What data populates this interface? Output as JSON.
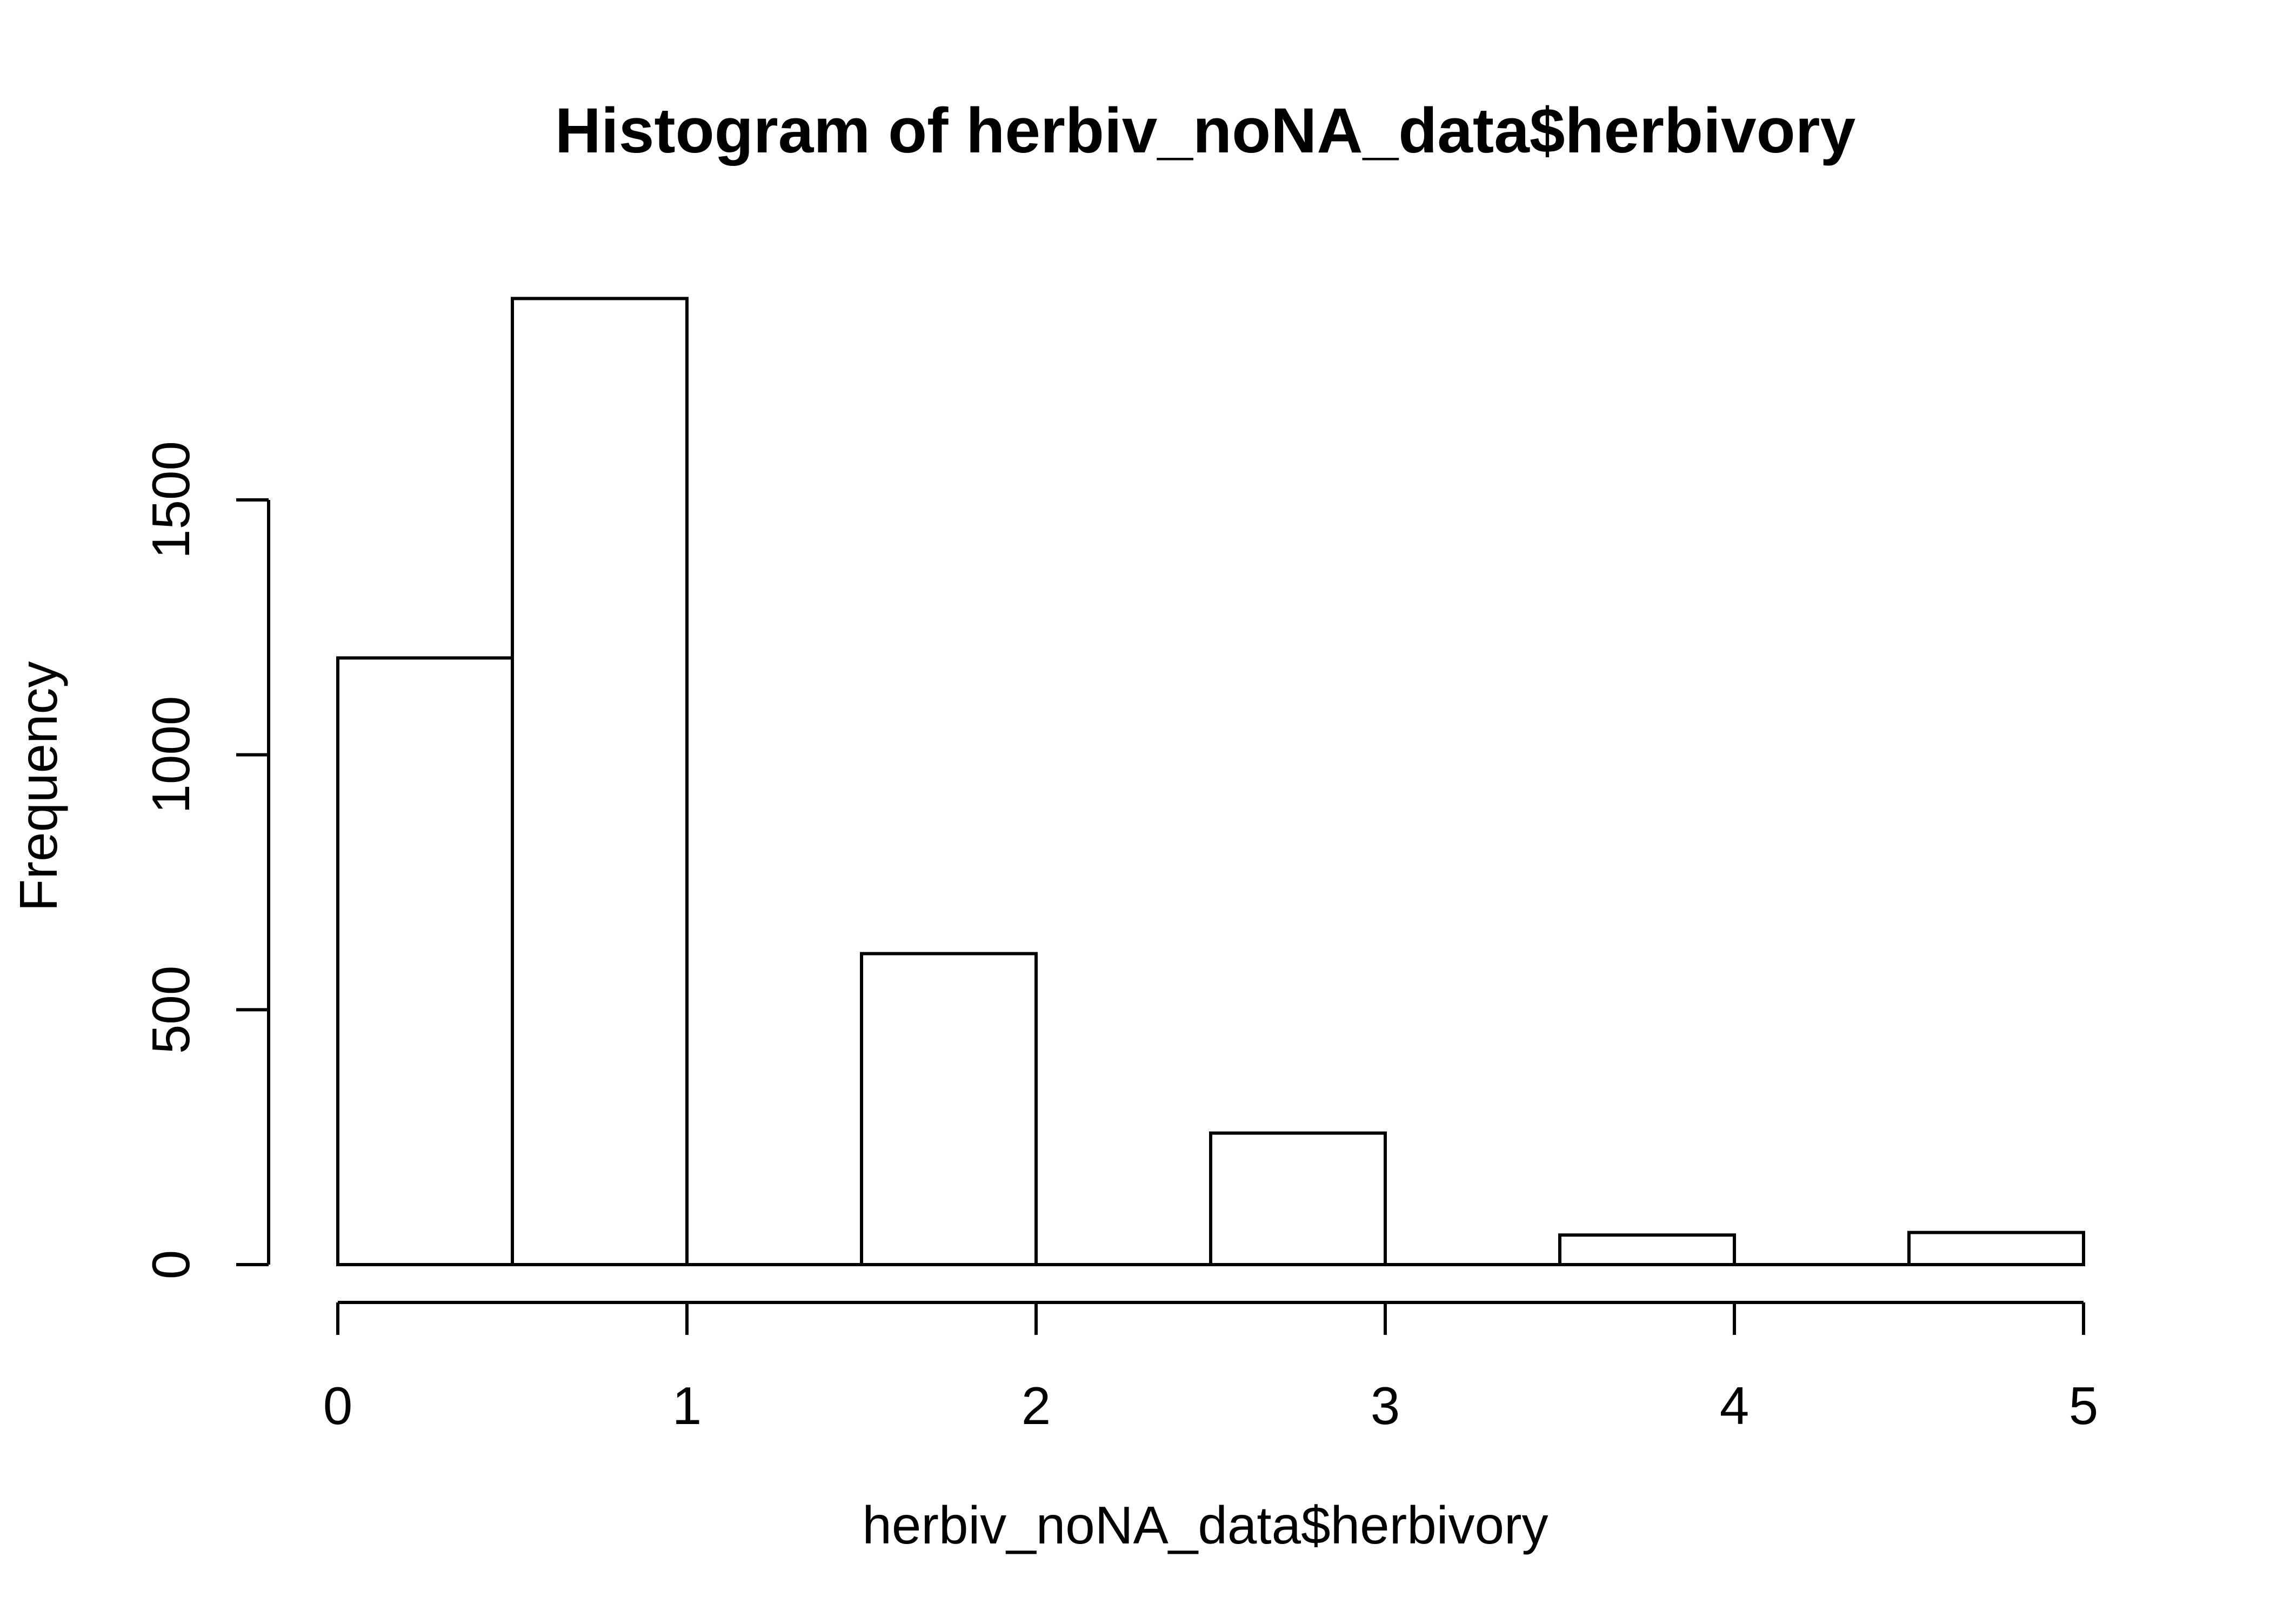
{
  "chart_data": {
    "type": "bar",
    "title": "Histogram of herbiv_noNA_data$herbivory",
    "xlabel": "herbiv_noNA_data$herbivory",
    "ylabel": "Frequency",
    "bins": [
      {
        "x0": 0,
        "x1": 0.5,
        "value": 1190
      },
      {
        "x0": 0.5,
        "x1": 1,
        "value": 1895
      },
      {
        "x0": 1,
        "x1": 1.5,
        "value": 0
      },
      {
        "x0": 1.5,
        "x1": 2,
        "value": 610
      },
      {
        "x0": 2,
        "x1": 2.5,
        "value": 0
      },
      {
        "x0": 2.5,
        "x1": 3,
        "value": 258
      },
      {
        "x0": 3,
        "x1": 3.5,
        "value": 0
      },
      {
        "x0": 3.5,
        "x1": 4,
        "value": 58
      },
      {
        "x0": 4,
        "x1": 4.5,
        "value": 0
      },
      {
        "x0": 4.5,
        "x1": 5,
        "value": 63
      }
    ],
    "xlim": [
      0,
      5
    ],
    "ylim": [
      0,
      1895
    ],
    "x_ticks": [
      0,
      1,
      2,
      3,
      4,
      5
    ],
    "x_tick_labels": [
      "0",
      "1",
      "2",
      "3",
      "4",
      "5"
    ],
    "y_ticks": [
      0,
      500,
      1000,
      1500
    ],
    "y_tick_labels": [
      "0",
      "500",
      "1000",
      "1500"
    ],
    "grid": false,
    "bar_fill": "#ffffff",
    "bar_stroke": "#000000"
  }
}
